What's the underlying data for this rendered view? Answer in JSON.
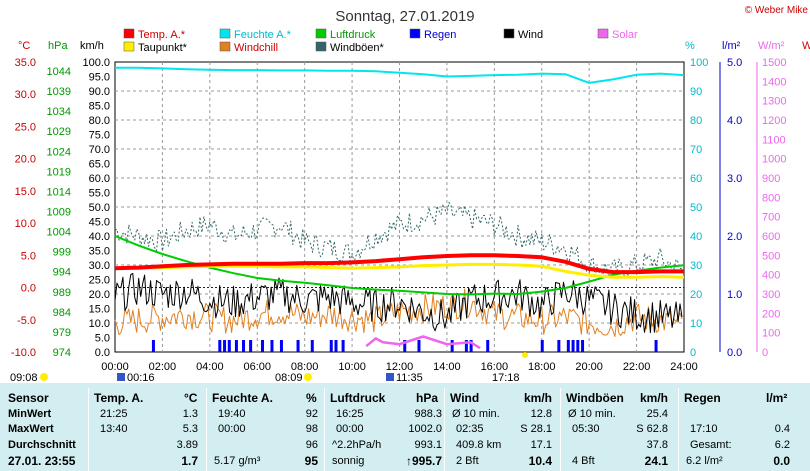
{
  "header": {
    "title": "Sonntag, 27.01.2019",
    "credit": "© Weber Mike"
  },
  "legend": [
    {
      "label": "Temp. A.*",
      "color": "#ff0000"
    },
    {
      "label": "Feuchte A.*",
      "color": "#00e5ee"
    },
    {
      "label": "Luftdruck",
      "color": "#00cc00"
    },
    {
      "label": "Regen",
      "color": "#0000ff"
    },
    {
      "label": "Wind",
      "color": "#000000"
    },
    {
      "label": "Solar",
      "color": "#ee66ee"
    },
    {
      "label": "Taupunkt*",
      "color": "#ffee00"
    },
    {
      "label": "Windchill",
      "color": "#e08020"
    },
    {
      "label": "Windböen*",
      "color": "#336666"
    }
  ],
  "axes": {
    "left_units": {
      "temp": "°C",
      "pressure": "hPa",
      "wind": "km/h"
    },
    "right_units": {
      "humidity": "%",
      "rain": "l/m²",
      "solar": "W/m²",
      "extra": "W"
    },
    "temp_ticks": [
      "35.0",
      "30.0",
      "25.0",
      "20.0",
      "15.0",
      "10.0",
      "5.0",
      "0.0",
      "-5.0",
      "-10.0"
    ],
    "pressure_ticks": [
      "1044",
      "1039",
      "1034",
      "1029",
      "1024",
      "1019",
      "1014",
      "1009",
      "1004",
      "999",
      "994",
      "989",
      "984",
      "979",
      "974"
    ],
    "wind_ticks": [
      "100.0",
      "95.0",
      "90.0",
      "85.0",
      "80.0",
      "75.0",
      "70.0",
      "65.0",
      "60.0",
      "55.0",
      "50.0",
      "45.0",
      "40.0",
      "35.0",
      "30.0",
      "25.0",
      "20.0",
      "15.0",
      "10.0",
      "5.0",
      "0.0"
    ],
    "humidity_ticks": [
      "100",
      "90",
      "80",
      "70",
      "60",
      "50",
      "40",
      "30",
      "20",
      "10",
      "0"
    ],
    "rain_ticks": [
      "5.0",
      "4.0",
      "3.0",
      "2.0",
      "1.0",
      "0.0"
    ],
    "solar_ticks": [
      "1500",
      "1400",
      "1300",
      "1200",
      "1100",
      "1000",
      "900",
      "800",
      "700",
      "600",
      "500",
      "400",
      "300",
      "200",
      "100",
      "0"
    ],
    "time_ticks": [
      "00:00",
      "02:00",
      "04:00",
      "06:00",
      "08:00",
      "10:00",
      "12:00",
      "14:00",
      "16:00",
      "18:00",
      "20:00",
      "22:00",
      "24:00"
    ]
  },
  "events": {
    "moonrise_left": "09:08",
    "sun1": "00:16",
    "sunrise": "08:09",
    "moon2": "11:35",
    "sunset": "17:18"
  },
  "chart_data": {
    "type": "line",
    "x_hours": [
      0,
      1,
      2,
      3,
      4,
      5,
      6,
      7,
      8,
      9,
      10,
      11,
      12,
      13,
      14,
      15,
      16,
      17,
      18,
      19,
      20,
      21,
      22,
      23,
      24
    ],
    "series": [
      {
        "name": "Temp. A.*",
        "axis": "temp",
        "values": [
          3.0,
          3.1,
          3.3,
          3.5,
          3.6,
          3.7,
          3.7,
          3.7,
          3.8,
          3.8,
          3.9,
          4.1,
          4.4,
          4.7,
          4.9,
          5.0,
          5.0,
          4.9,
          4.7,
          4.0,
          2.9,
          2.4,
          2.4,
          2.5,
          2.5
        ]
      },
      {
        "name": "Taupunkt*",
        "axis": "temp",
        "values": [
          3.0,
          3.0,
          3.1,
          3.2,
          3.3,
          3.3,
          3.3,
          3.2,
          3.2,
          3.1,
          3.0,
          3.1,
          3.2,
          3.4,
          3.5,
          3.6,
          3.6,
          3.5,
          3.3,
          2.5,
          1.9,
          1.6,
          1.6,
          1.7,
          1.6
        ]
      },
      {
        "name": "Feuchte A.*",
        "axis": "humidity",
        "values": [
          98,
          98,
          97.8,
          97.5,
          97.3,
          97.2,
          97.2,
          97.1,
          97.1,
          97,
          97,
          96.8,
          96.3,
          95.8,
          95,
          95.2,
          95.5,
          95.6,
          96,
          95.8,
          92.8,
          94,
          95.6,
          96,
          95.5
        ]
      },
      {
        "name": "Luftdruck",
        "axis": "pressure",
        "values": [
          1003,
          1000.6,
          998.5,
          996.7,
          995.1,
          993.7,
          992.5,
          991.8,
          991.3,
          990.7,
          990,
          989.6,
          989.3,
          988.9,
          988.5,
          988.4,
          988.6,
          988.5,
          989.1,
          990,
          991.6,
          993.3,
          994.3,
          995.1,
          995.7
        ]
      },
      {
        "name": "Wind",
        "axis": "wind",
        "values": [
          19,
          22,
          20,
          21,
          18,
          17,
          19,
          20,
          18,
          19,
          17,
          16,
          17,
          14,
          12,
          18,
          19,
          20,
          16,
          21,
          18,
          15,
          13,
          12,
          11
        ]
      },
      {
        "name": "Windchill",
        "axis": "wind",
        "values": [
          10,
          11,
          12,
          13,
          12,
          11,
          13,
          14,
          12,
          13,
          12,
          11,
          14,
          15,
          16,
          17,
          13,
          12,
          11,
          12,
          10,
          9,
          12,
          11,
          9
        ]
      },
      {
        "name": "Windböen*",
        "axis": "wind",
        "values": [
          42,
          40,
          38,
          42,
          44,
          40,
          42,
          44,
          38,
          36,
          34,
          40,
          44,
          46,
          48,
          46,
          44,
          40,
          38,
          36,
          30,
          28,
          30,
          32,
          28
        ]
      }
    ],
    "rain_bars_hours": [
      1.6,
      4.4,
      4.6,
      4.8,
      5.1,
      5.4,
      5.7,
      6.2,
      6.6,
      7.0,
      7.7,
      8.3,
      9.1,
      9.3,
      9.6,
      12.2,
      12.8,
      14.2,
      14.8,
      15.0,
      15.7,
      18.0,
      18.7,
      19.1,
      19.3,
      19.5,
      19.7,
      22.8
    ],
    "solar": {
      "start": 10.6,
      "peak_hours": [
        10.6,
        11.0,
        11.3,
        12.0,
        13.0,
        14.0,
        15.0,
        15.4
      ],
      "peak_values": [
        20,
        60,
        40,
        30,
        70,
        30,
        40,
        10
      ]
    },
    "ylim_temp": [
      -10,
      35
    ],
    "ylim_wind": [
      0,
      100
    ],
    "ylim_humidity": [
      0,
      100
    ],
    "xlim_hours": [
      0,
      24
    ],
    "grid": true
  },
  "stats": {
    "headers": {
      "sensor": "Sensor",
      "temp": "Temp. A.",
      "temp_unit": "°C",
      "hum": "Feuchte A.",
      "hum_unit": "%",
      "press": "Luftdruck",
      "press_unit": "hPa",
      "wind": "Wind",
      "wind_unit": "km/h",
      "gust": "Windböen",
      "gust_unit": "km/h",
      "rain": "Regen",
      "rain_unit": "l/m²"
    },
    "rows": {
      "min": {
        "label": "MinWert",
        "t_time": "21:25",
        "t_val": "1.3",
        "h_time": "19:40",
        "h_val": "92",
        "p_time": "16:25",
        "p_val": "988.3",
        "w_a": "Ø 10 min.",
        "w_b": "12.8",
        "g_a": "Ø 10 min.",
        "g_b": "25.4"
      },
      "max": {
        "label": "MaxWert",
        "t_time": "13:40",
        "t_val": "5.3",
        "h_time": "00:00",
        "h_val": "98",
        "p_time": "00:00",
        "p_val": "1002.0",
        "w_a": "02:35",
        "w_b": "S 28.1",
        "g_a": "05:30",
        "g_b": "S 62.8",
        "r_a": "17:10",
        "r_b": "0.4"
      },
      "avg": {
        "label": "Durchschnitt",
        "t_val": "3.89",
        "h_val": "96",
        "p_a": "^2.2hPa/h",
        "p_val": "993.1",
        "w_a": "409.8 km",
        "w_b": "17.1",
        "g_b": "37.8",
        "r_a": "Gesamt:",
        "r_b": "6.2"
      },
      "now": {
        "label": "27.01. 23:55",
        "t_val": "1.7",
        "h_a": "5.17 g/m³",
        "h_val": "95",
        "p_a": "sonnig",
        "p_val": "↑995.7",
        "w_a": "2 Bft",
        "w_b": "10.4",
        "g_a": "4 Bft",
        "g_b": "24.1",
        "r_a": "6.2 l/m²",
        "r_b": "0.0"
      }
    }
  }
}
